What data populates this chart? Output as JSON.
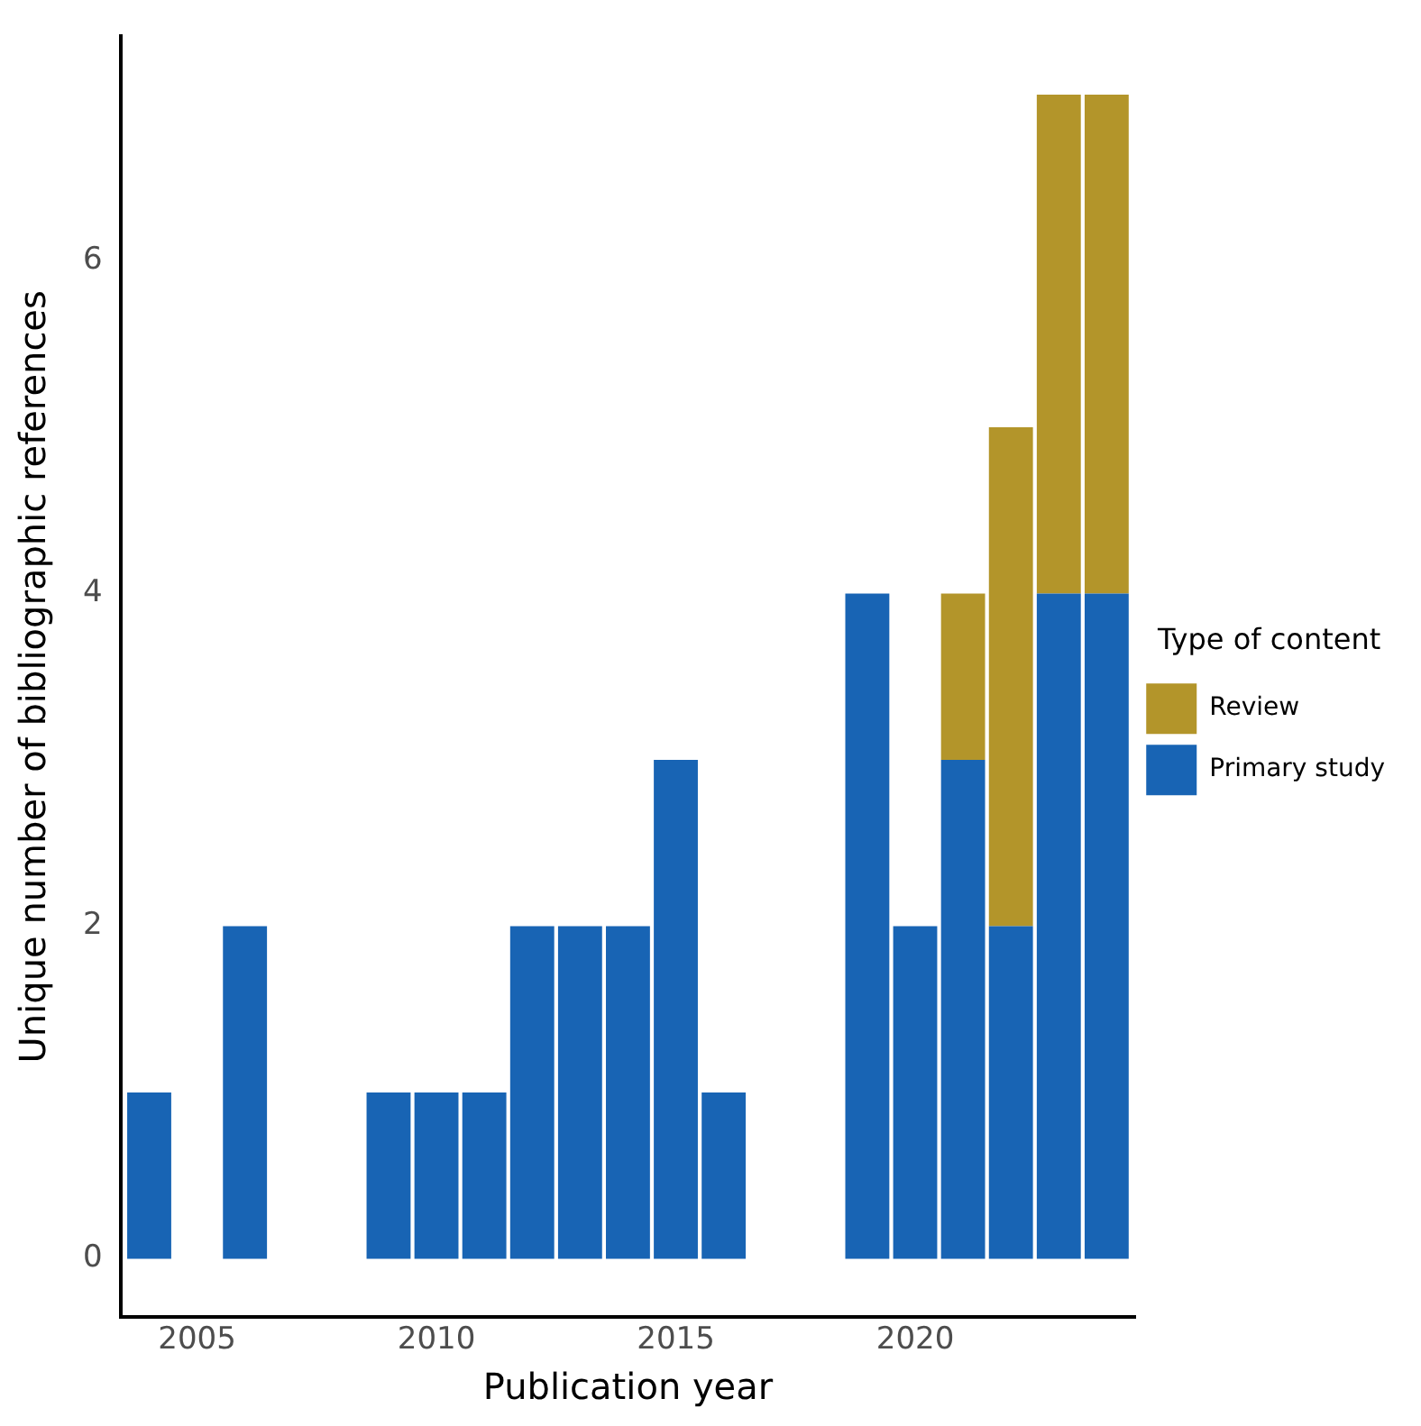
{
  "chart_data": {
    "type": "bar",
    "stacked": true,
    "xlabel": "Publication year",
    "ylabel": "Unique number of bibliographic references",
    "legend_title": "Type of content",
    "legend": "right",
    "x": [
      2004,
      2006,
      2009,
      2010,
      2011,
      2012,
      2013,
      2014,
      2015,
      2016,
      2019,
      2020,
      2021,
      2022,
      2023,
      2024
    ],
    "series": [
      {
        "name": "Primary study",
        "color": "#1864b4",
        "values": [
          1,
          2,
          1,
          1,
          1,
          2,
          2,
          2,
          3,
          1,
          4,
          2,
          3,
          2,
          4,
          4
        ]
      },
      {
        "name": "Review",
        "color": "#b3952a",
        "values": [
          null,
          null,
          null,
          null,
          null,
          null,
          null,
          null,
          null,
          null,
          null,
          null,
          1,
          3,
          3,
          3
        ]
      }
    ],
    "xlim": [
      2003.4,
      2024.6
    ],
    "xticks": [
      2005,
      2010,
      2015,
      2020
    ],
    "ylim": [
      -0.35,
      7.35
    ],
    "yticks": [
      0,
      2,
      4,
      6
    ],
    "grid": false
  }
}
